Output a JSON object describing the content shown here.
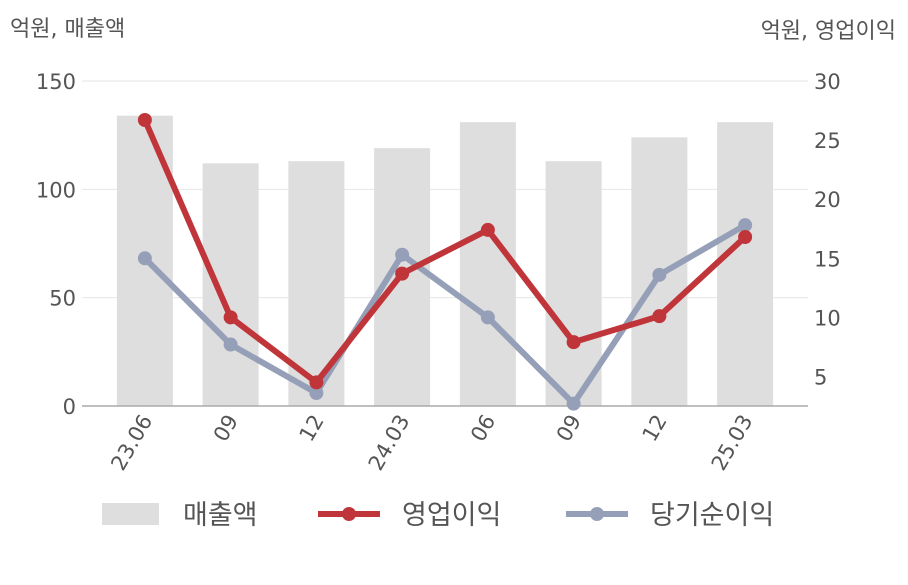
{
  "chart_data": {
    "type": "bar",
    "categories": [
      "23.06",
      "09",
      "12",
      "24.03",
      "06",
      "09",
      "12",
      "25.03"
    ],
    "left_unit_label": "억원, 매출액",
    "right_unit_label": "억원, 영업이익",
    "y_left": {
      "lim": [
        0,
        150
      ],
      "ticks": [
        "150",
        "100",
        "50",
        "0"
      ],
      "tick_values": [
        150,
        100,
        50,
        0
      ]
    },
    "y_right": {
      "lim": [
        2.5,
        30
      ],
      "ticks": [
        "30",
        "25",
        "20",
        "15",
        "10",
        "5"
      ],
      "tick_values": [
        30,
        25,
        20,
        15,
        10,
        5
      ]
    },
    "grid": true,
    "legend_position": "bottom",
    "series": [
      {
        "name": "매출액",
        "kind": "bar",
        "axis": "left",
        "color": "#dedede",
        "values": [
          134,
          112,
          113,
          119,
          131,
          113,
          124,
          131
        ]
      },
      {
        "name": "영업이익",
        "kind": "line",
        "axis": "right",
        "color": "#c0353a",
        "values": [
          26.7,
          10.0,
          4.5,
          13.7,
          17.4,
          7.9,
          10.1,
          16.8
        ]
      },
      {
        "name": "당기순이익",
        "kind": "line",
        "axis": "right",
        "color": "#95a0b8",
        "values": [
          15.0,
          7.7,
          3.6,
          15.3,
          10.0,
          2.7,
          13.6,
          17.8
        ]
      }
    ]
  }
}
